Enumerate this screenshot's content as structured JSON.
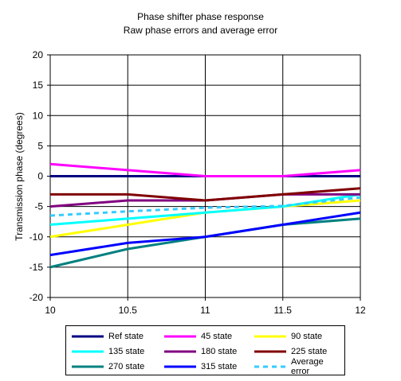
{
  "chart_data": {
    "type": "line",
    "title": "Phase shifter phase response",
    "subtitle": "Raw phase errors and average error",
    "xlabel": "",
    "ylabel": "Transmission phase (degrees)",
    "x": [
      10,
      10.5,
      11,
      11.5,
      12
    ],
    "xlim": [
      10,
      12
    ],
    "ylim": [
      -20,
      20
    ],
    "x_ticks": [
      "10",
      "10.5",
      "11",
      "11.5",
      "12"
    ],
    "y_ticks": [
      "20",
      "15",
      "10",
      "5",
      "0",
      "-5",
      "-10",
      "-15",
      "-20"
    ],
    "grid": true,
    "legend_position": "bottom",
    "series": [
      {
        "name": "Ref state",
        "color": "#000080",
        "dash": false,
        "values": [
          0,
          0,
          0,
          0,
          0
        ]
      },
      {
        "name": "45 state",
        "color": "#ff00ff",
        "dash": false,
        "values": [
          2,
          1,
          0,
          0,
          1
        ]
      },
      {
        "name": "90 state",
        "color": "#ffff00",
        "dash": false,
        "values": [
          -10,
          -8,
          -6,
          -5,
          -4
        ]
      },
      {
        "name": "135 state",
        "color": "#00ffff",
        "dash": false,
        "values": [
          -8,
          -7,
          -6,
          -5,
          -3
        ]
      },
      {
        "name": "180 state",
        "color": "#800080",
        "dash": false,
        "values": [
          -5,
          -4,
          -4,
          -3,
          -3
        ]
      },
      {
        "name": "225 state",
        "color": "#800000",
        "dash": false,
        "values": [
          -3,
          -3,
          -4,
          -3,
          -2
        ]
      },
      {
        "name": "270 state",
        "color": "#008080",
        "dash": false,
        "values": [
          -15,
          -12,
          -10,
          -8,
          -7
        ]
      },
      {
        "name": "315 state",
        "color": "#0000ff",
        "dash": false,
        "values": [
          -13,
          -11,
          -10,
          -8,
          -6
        ]
      },
      {
        "name": "Average error",
        "color": "#33ccff",
        "dash": true,
        "values": [
          -6.5,
          -5.8,
          -5.2,
          -4.9,
          -3.5
        ]
      }
    ]
  }
}
